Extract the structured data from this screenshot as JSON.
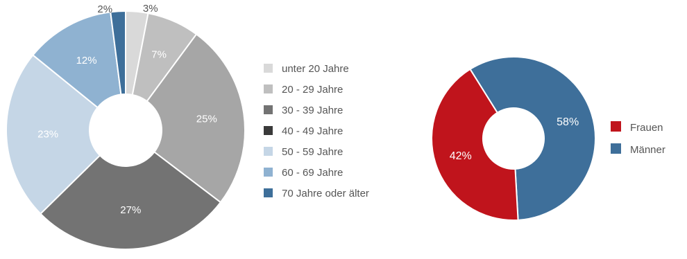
{
  "chart_data": [
    {
      "type": "pie",
      "style": "donut",
      "categories": [
        "unter 20 Jahre",
        "20 - 29 Jahre",
        "30 - 39 Jahre",
        "40 - 49 Jahre",
        "50 - 59 Jahre",
        "60 - 69 Jahre",
        "70 Jahre oder älter"
      ],
      "values": [
        3,
        7,
        25,
        27,
        23,
        12,
        2
      ],
      "slice_order": [
        0,
        1,
        2,
        3,
        4,
        5,
        6
      ],
      "value_labels": [
        "3%",
        "7%",
        "25%",
        "27%",
        "23%",
        "12%",
        "2%"
      ],
      "colors": [
        "#d9d9d9",
        "#bfbfbf",
        "#a6a6a6",
        "#737373",
        "#c5d6e6",
        "#8fb2d1",
        "#3e6f9a"
      ],
      "label_colors": [
        "#555555",
        "#ffffff",
        "#ffffff",
        "#ffffff",
        "#ffffff",
        "#ffffff",
        "#555555"
      ],
      "legend_order": [
        0,
        1,
        3,
        3,
        4,
        5,
        6
      ],
      "legend_colors": [
        "#d9d9d9",
        "#bfbfbf",
        "#737373",
        "#3a3a3a",
        "#c5d6e6",
        "#8fb2d1",
        "#3e6f9a"
      ],
      "legend": {
        "labels": [
          "unter 20 Jahre",
          "20 - 29 Jahre",
          "30 - 39 Jahre",
          "40 - 49 Jahre",
          "50 - 59 Jahre",
          "60 - 69 Jahre",
          "70 Jahre oder älter"
        ],
        "position": "right"
      },
      "start_angle_deg": 0,
      "direction": "clockwise"
    },
    {
      "type": "pie",
      "style": "donut",
      "categories": [
        "Frauen",
        "Männer"
      ],
      "values": [
        42,
        58
      ],
      "slice_order": [
        1,
        0
      ],
      "value_labels": [
        "42%",
        "58%"
      ],
      "colors": [
        "#c0141c",
        "#3e6f9a"
      ],
      "label_colors": [
        "#ffffff",
        "#ffffff"
      ],
      "legend": {
        "labels": [
          "Frauen",
          "Männer"
        ],
        "position": "right"
      },
      "start_angle_deg": -32,
      "direction": "clockwise"
    }
  ]
}
